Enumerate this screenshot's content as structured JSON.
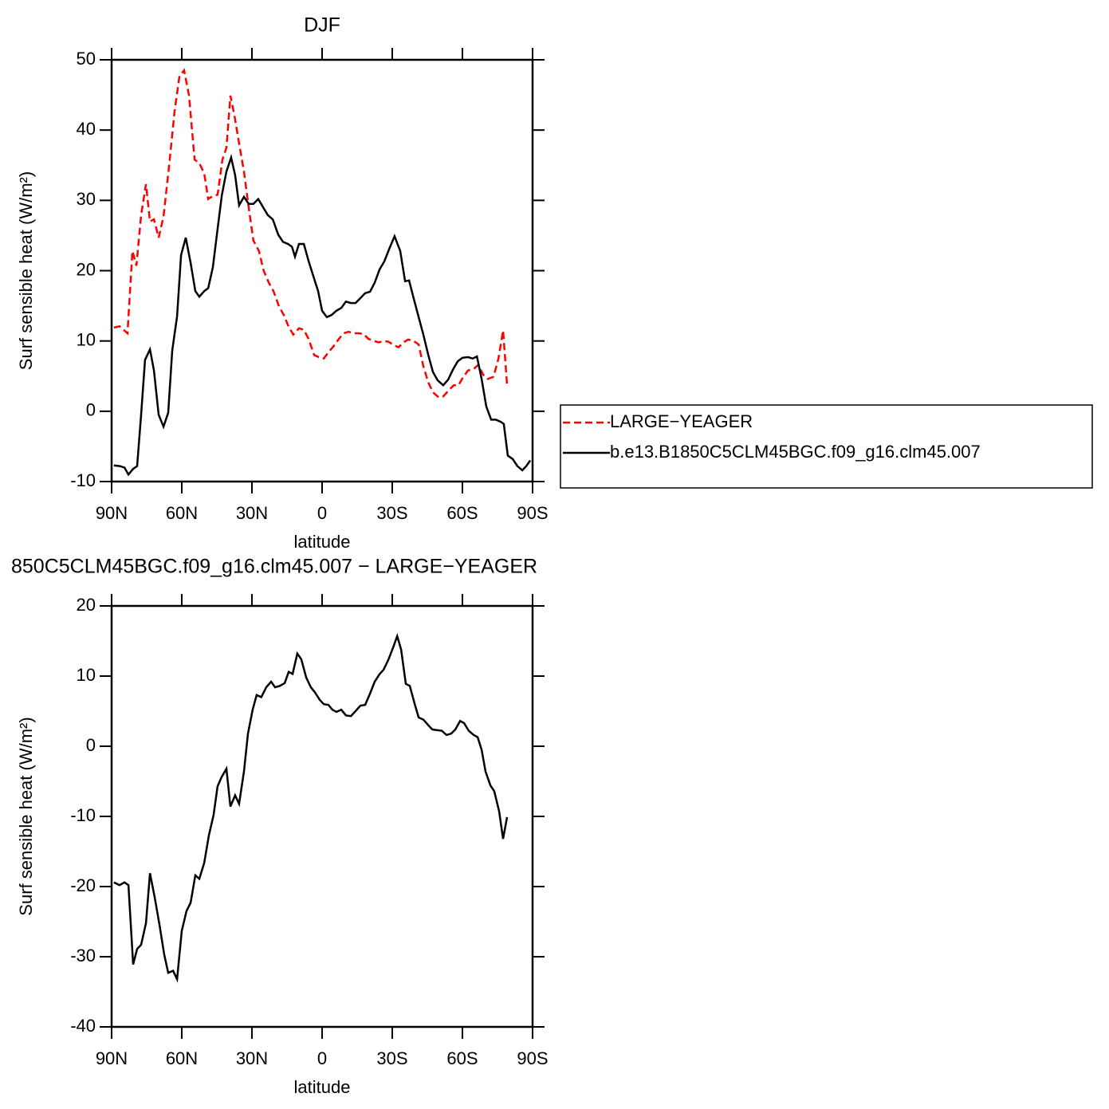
{
  "chart_data": [
    {
      "type": "line",
      "title": "DJF",
      "x_label": "latitude",
      "y_label": "Surf sensible heat (W/m²)",
      "xlim": [
        90,
        -90
      ],
      "xticks": [
        {
          "value": 90,
          "label": "90N"
        },
        {
          "value": 60,
          "label": "60N"
        },
        {
          "value": 30,
          "label": "30N"
        },
        0,
        {
          "value": -30,
          "label": "30S"
        },
        {
          "value": -60,
          "label": "60S"
        },
        {
          "value": -90,
          "label": "90S"
        }
      ],
      "ylim": [
        -10,
        50
      ],
      "yticks": [
        -10,
        0,
        10,
        20,
        30,
        40,
        50
      ],
      "legend": "right",
      "series": [
        {
          "name": "LARGE−YEAGER",
          "color": "#ff0000",
          "line_style": "dashed",
          "x": [
            89,
            86.6,
            83.2,
            81.1,
            79.4,
            77.4,
            75.3,
            73.6,
            71.9,
            69.9,
            67.8,
            65.5,
            63.1,
            61.0,
            59.0,
            56.9,
            54.5,
            52.5,
            50.4,
            48.7,
            46.4,
            44.7,
            42.6,
            40.9,
            39.2,
            37.5,
            35.5,
            33.4,
            31.4,
            29.4,
            27.0,
            25.0,
            22.8,
            20.8,
            18.4,
            16.4,
            14.3,
            12.3,
            9.9,
            7.8,
            5.8,
            3.4,
            1.4,
            -0.7,
            -2.7,
            -4.8,
            -7.2,
            -9.2,
            -11.3,
            -13.6,
            -15.7,
            -17.7,
            -19.8,
            -22.2,
            -24.2,
            -26.3,
            -28.3,
            -30.7,
            -32.7,
            -34.8,
            -36.8,
            -39.2,
            -41.3,
            -43.3,
            -45.4,
            -47.4,
            -49.8,
            -51.8,
            -53.9,
            -56.3,
            -58.3,
            -60.4,
            -62.4,
            -64.8,
            -66.8,
            -68.9,
            -70.9,
            -73.3,
            -75.4,
            -77.4,
            -79.1
          ],
          "values": [
            11.9,
            12.1,
            11.1,
            22.8,
            20.7,
            27.9,
            32.3,
            27.0,
            27.3,
            24.7,
            27.7,
            34.7,
            42.6,
            47.7,
            48.5,
            44.9,
            35.8,
            35.3,
            33.8,
            30.2,
            30.7,
            30.8,
            35.8,
            37.5,
            44.9,
            42.1,
            38.1,
            34.1,
            29.0,
            24.3,
            22.8,
            20.0,
            18.3,
            17.1,
            14.9,
            13.7,
            12.0,
            10.9,
            11.8,
            11.6,
            10.3,
            8.0,
            7.7,
            7.5,
            8.4,
            9.2,
            10.3,
            11.1,
            11.3,
            11.1,
            11.1,
            11.0,
            10.3,
            10.0,
            9.8,
            10.0,
            9.9,
            9.4,
            9.1,
            9.8,
            10.2,
            10.0,
            9.5,
            6.4,
            4.1,
            2.7,
            2.0,
            2.1,
            2.9,
            3.7,
            3.7,
            4.9,
            5.8,
            6.0,
            6.6,
            5.2,
            4.6,
            4.9,
            7.5,
            11.5,
            3.7
          ]
        },
        {
          "name": "b.e13.B1850C5CLM45BGC.f09_g16.clm45.007",
          "color": "#000000",
          "line_style": "solid",
          "x": [
            89,
            86.6,
            84.5,
            82.8,
            80.8,
            79.1,
            77.4,
            75.7,
            73.6,
            71.9,
            69.9,
            67.8,
            65.8,
            64.1,
            62.0,
            60.3,
            58.3,
            56.2,
            54.2,
            52.5,
            50.4,
            48.7,
            46.7,
            45.0,
            42.9,
            40.9,
            38.9,
            37.2,
            35.5,
            33.4,
            31.4,
            29.4,
            27.3,
            25.2,
            23.2,
            21.1,
            18.7,
            16.7,
            14.6,
            12.9,
            11.6,
            9.9,
            7.8,
            5.8,
            3.7,
            1.7,
            0.0,
            -2.0,
            -4.1,
            -6.1,
            -8.2,
            -10.2,
            -12.3,
            -14.3,
            -16.4,
            -18.4,
            -20.5,
            -22.5,
            -24.6,
            -26.6,
            -28.7,
            -31.0,
            -33.4,
            -35.5,
            -37.2,
            -39.2,
            -41.3,
            -43.3,
            -45.4,
            -47.4,
            -49.4,
            -51.8,
            -53.9,
            -55.9,
            -58.0,
            -60.0,
            -62.4,
            -64.4,
            -66.2,
            -68.2,
            -70.2,
            -72.3,
            -74.3,
            -76.4,
            -77.7,
            -79.4,
            -81.5,
            -83.5,
            -85.6,
            -87.3,
            -89.0
          ],
          "values": [
            -7.7,
            -7.8,
            -8.0,
            -9.0,
            -8.2,
            -7.8,
            -0.5,
            7.3,
            8.8,
            5.8,
            -0.5,
            -2.2,
            -0.2,
            8.6,
            13.5,
            22.2,
            24.7,
            21.1,
            17.1,
            16.3,
            17.1,
            17.5,
            20.5,
            25.1,
            30.7,
            34.1,
            36.1,
            33.6,
            29.3,
            30.5,
            29.5,
            29.5,
            30.2,
            29.0,
            27.9,
            27.3,
            25.1,
            24.1,
            23.8,
            23.4,
            22.0,
            23.8,
            23.8,
            21.4,
            19.2,
            17.1,
            14.3,
            13.4,
            13.7,
            14.3,
            14.7,
            15.6,
            15.4,
            15.4,
            16.1,
            16.8,
            17.0,
            18.3,
            20.2,
            21.3,
            23.1,
            24.9,
            22.8,
            18.5,
            18.6,
            16.0,
            13.4,
            10.9,
            8.0,
            5.6,
            4.4,
            3.7,
            4.5,
            5.9,
            7.1,
            7.6,
            7.7,
            7.5,
            7.8,
            4.6,
            0.7,
            -1.2,
            -1.2,
            -1.5,
            -1.8,
            -6.3,
            -6.8,
            -7.8,
            -8.4,
            -7.8,
            -7.0
          ]
        }
      ]
    },
    {
      "type": "line",
      "title": "850C5CLM45BGC.f09_g16.clm45.007 − LARGE−YEAGER",
      "x_label": "latitude",
      "y_label": "Surf sensible heat (W/m²)",
      "xlim": [
        90,
        -90
      ],
      "xticks": [
        {
          "value": 90,
          "label": "90N"
        },
        {
          "value": 60,
          "label": "60N"
        },
        {
          "value": 30,
          "label": "30N"
        },
        0,
        {
          "value": -30,
          "label": "30S"
        },
        {
          "value": -60,
          "label": "60S"
        },
        {
          "value": -90,
          "label": "90S"
        }
      ],
      "ylim": [
        -40,
        20
      ],
      "yticks": [
        -40,
        -30,
        -20,
        -10,
        0,
        10,
        20
      ],
      "series": [
        {
          "color": "#000000",
          "line_style": "solid",
          "x": [
            89,
            86.6,
            84.5,
            82.8,
            80.8,
            79.1,
            77.4,
            75.3,
            73.6,
            71.6,
            69.5,
            67.5,
            65.8,
            63.7,
            62.0,
            60.0,
            58.0,
            56.2,
            54.2,
            52.5,
            50.4,
            48.4,
            46.4,
            44.7,
            43.0,
            40.9,
            39.2,
            37.2,
            35.5,
            33.4,
            31.7,
            29.7,
            28.0,
            26.0,
            23.9,
            21.8,
            20.1,
            18.1,
            16.0,
            14.3,
            12.6,
            10.6,
            8.9,
            6.8,
            4.8,
            3.1,
            1.0,
            -0.7,
            -2.7,
            -4.4,
            -6.1,
            -8.2,
            -10.2,
            -12.3,
            -14.3,
            -16.4,
            -18.4,
            -20.5,
            -22.5,
            -24.6,
            -26.3,
            -28.3,
            -30.4,
            -32.1,
            -33.8,
            -35.8,
            -37.5,
            -39.6,
            -41.3,
            -43.3,
            -45.4,
            -47.1,
            -49.1,
            -51.2,
            -53.2,
            -55.2,
            -57.0,
            -59.0,
            -60.7,
            -62.7,
            -64.8,
            -66.5,
            -68.2,
            -69.9,
            -72.0,
            -73.6,
            -75.7,
            -77.4,
            -79.1
          ],
          "values": [
            -19.4,
            -19.8,
            -19.4,
            -19.8,
            -31.1,
            -28.9,
            -28.3,
            -25.2,
            -18.1,
            -21.5,
            -25.5,
            -29.7,
            -32.3,
            -32.0,
            -33.2,
            -26.3,
            -23.5,
            -22.3,
            -18.4,
            -18.9,
            -16.6,
            -12.7,
            -9.8,
            -5.7,
            -4.4,
            -3.2,
            -8.6,
            -7.0,
            -8.2,
            -3.6,
            1.8,
            5.2,
            7.3,
            7.0,
            8.4,
            9.2,
            8.4,
            8.6,
            9.0,
            10.6,
            10.3,
            13.2,
            12.4,
            9.8,
            8.4,
            7.7,
            6.6,
            6.0,
            5.9,
            5.2,
            4.9,
            5.2,
            4.4,
            4.3,
            5.0,
            5.8,
            5.9,
            7.5,
            9.2,
            10.3,
            10.9,
            12.3,
            14.1,
            15.7,
            13.8,
            8.9,
            8.6,
            6.0,
            4.1,
            3.8,
            3.0,
            2.4,
            2.3,
            2.2,
            1.6,
            1.8,
            2.4,
            3.6,
            3.3,
            2.2,
            1.6,
            1.3,
            -0.5,
            -3.6,
            -5.6,
            -6.4,
            -9.3,
            -13.2,
            -10.1
          ]
        }
      ]
    }
  ]
}
